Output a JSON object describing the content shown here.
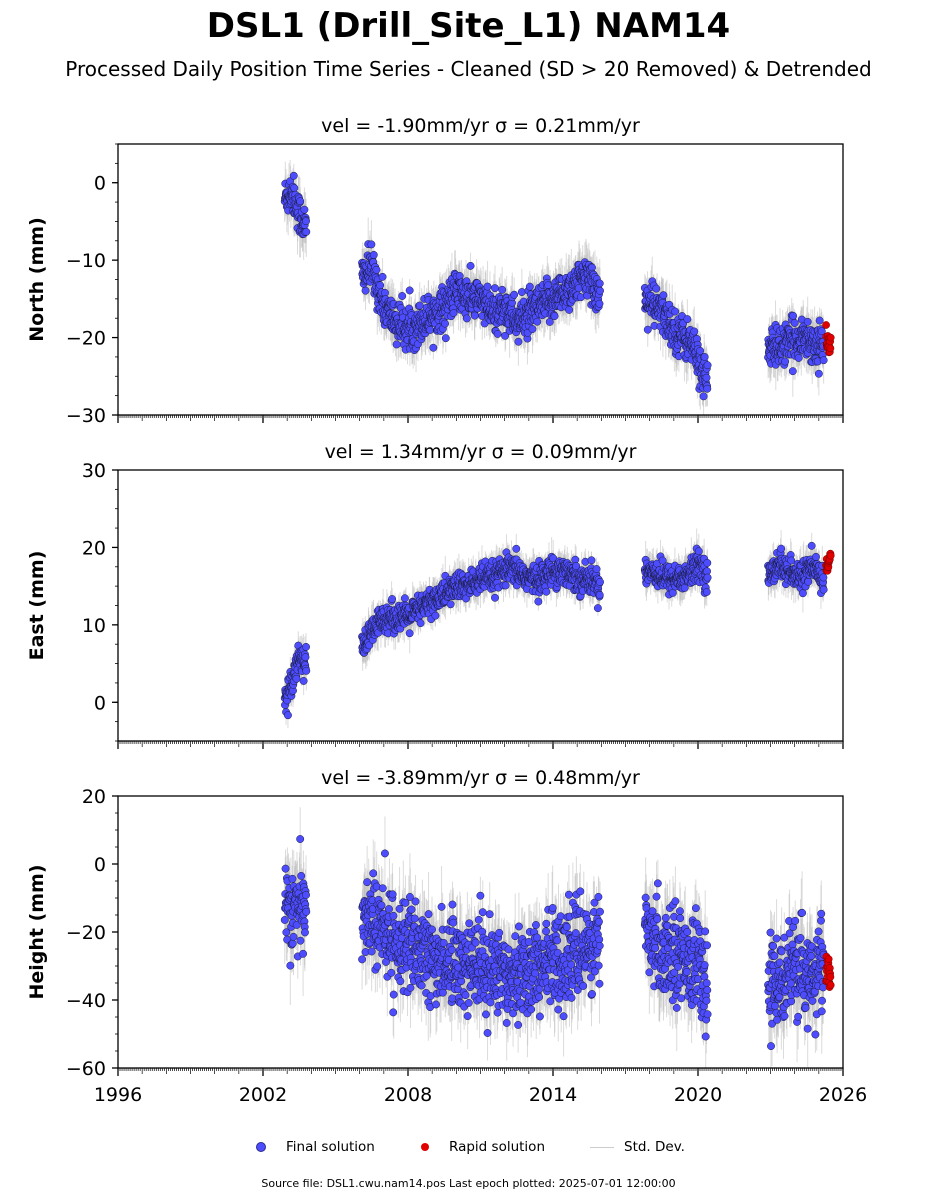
{
  "title": "DSL1 (Drill_Site_L1) NAM14",
  "subtitle": "Processed Daily Position Time Series - Cleaned (SD > 20 Removed) & Detrended",
  "footer": "Source file: DSL1.cwu.nam14.pos  Last epoch plotted: 2025-07-01 12:00:00",
  "legend": {
    "final_label": "Final solution",
    "rapid_label": "Rapid solution",
    "std_label": "Std. Dev."
  },
  "colors": {
    "final": "#4d4dff",
    "final_edge": "#1a1a3a",
    "rapid": "#e00000",
    "std": "#bdbdbd"
  },
  "chart_data": [
    {
      "type": "scatter",
      "title": "vel = -1.90mm/yr   σ = 0.21mm/yr",
      "ylabel": "North (mm)",
      "xlim": [
        1996,
        2026
      ],
      "ylim": [
        -30,
        5
      ],
      "yticks": [
        0,
        -10,
        -20,
        -30
      ],
      "yticklabels": [
        "0",
        "−10",
        "−20",
        "−30"
      ],
      "noise": 1.3,
      "err": 2.4,
      "series": [
        {
          "name": "Final solution",
          "segments": [
            {
              "x": [
                2002.9,
                2003.2,
                2003.5,
                2003.8
              ],
              "y": [
                -2,
                -1,
                -4,
                -6
              ]
            },
            {
              "x": [
                2006.1,
                2006.5,
                2007.0,
                2007.5,
                2008.0,
                2008.5,
                2009.0,
                2009.5,
                2010.0,
                2010.5,
                2011.0,
                2011.5,
                2012.0,
                2012.5,
                2013.0,
                2013.5,
                2014.0,
                2014.5,
                2015.0,
                2015.5,
                2015.95
              ],
              "y": [
                -12,
                -11,
                -16,
                -18,
                -19,
                -18,
                -17,
                -16,
                -14,
                -15,
                -15,
                -17,
                -16,
                -18,
                -17,
                -16,
                -15,
                -14,
                -13,
                -12,
                -15
              ]
            },
            {
              "x": [
                2017.8,
                2018.2,
                2018.6,
                2019.0,
                2019.4,
                2019.8,
                2020.1,
                2020.4
              ],
              "y": [
                -15,
                -16,
                -17,
                -19,
                -20,
                -21,
                -24,
                -25
              ]
            },
            {
              "x": [
                2022.9,
                2023.3,
                2023.7,
                2024.1,
                2024.5,
                2024.9,
                2025.2
              ],
              "y": [
                -22,
                -21,
                -21,
                -20,
                -20,
                -21,
                -21
              ]
            }
          ]
        },
        {
          "name": "Rapid solution",
          "segments": [
            {
              "x": [
                2025.3,
                2025.5
              ],
              "y": [
                -20,
                -21
              ]
            }
          ]
        }
      ]
    },
    {
      "type": "scatter",
      "title": "vel = 1.34mm/yr   σ = 0.09mm/yr",
      "ylabel": "East (mm)",
      "xlim": [
        1996,
        2026
      ],
      "ylim": [
        -5,
        30
      ],
      "yticks": [
        30,
        20,
        10,
        0
      ],
      "yticklabels": [
        "30",
        "20",
        "10",
        "0"
      ],
      "noise": 0.9,
      "err": 1.8,
      "series": [
        {
          "name": "Final solution",
          "segments": [
            {
              "x": [
                2002.9,
                2003.2,
                2003.5,
                2003.8
              ],
              "y": [
                0,
                3,
                6,
                5
              ]
            },
            {
              "x": [
                2006.1,
                2006.5,
                2007.0,
                2007.5,
                2008.0,
                2008.5,
                2009.0,
                2009.5,
                2010.0,
                2010.5,
                2011.0,
                2011.5,
                2012.0,
                2012.5,
                2013.0,
                2013.5,
                2014.0,
                2014.5,
                2015.0,
                2015.5,
                2015.95
              ],
              "y": [
                7,
                9,
                11,
                11,
                11,
                12,
                13,
                14,
                15,
                15,
                16,
                16,
                17,
                17,
                16,
                16,
                17,
                17,
                16,
                16,
                15
              ]
            },
            {
              "x": [
                2017.8,
                2018.2,
                2018.6,
                2019.0,
                2019.4,
                2019.8,
                2020.1,
                2020.4
              ],
              "y": [
                17,
                17,
                16,
                16,
                16,
                17,
                18,
                16
              ]
            },
            {
              "x": [
                2022.9,
                2023.3,
                2023.7,
                2024.1,
                2024.5,
                2024.9,
                2025.2
              ],
              "y": [
                16,
                18,
                17,
                16,
                17,
                17,
                16
              ]
            }
          ]
        },
        {
          "name": "Rapid solution",
          "segments": [
            {
              "x": [
                2025.3,
                2025.5
              ],
              "y": [
                17,
                19
              ]
            }
          ]
        }
      ]
    },
    {
      "type": "scatter",
      "title": "vel = -3.89mm/yr   σ = 0.48mm/yr",
      "ylabel": "Height (mm)",
      "xlim": [
        1996,
        2026
      ],
      "ylim": [
        -60,
        20
      ],
      "yticks": [
        20,
        0,
        -20,
        -40,
        -60
      ],
      "yticklabels": [
        "20",
        "0",
        "−20",
        "−40",
        "−60"
      ],
      "noise": 6.5,
      "err": 9,
      "series": [
        {
          "name": "Final solution",
          "segments": [
            {
              "x": [
                2002.9,
                2003.2,
                2003.5,
                2003.8
              ],
              "y": [
                -10,
                -12,
                -14,
                -15
              ]
            },
            {
              "x": [
                2006.1,
                2006.5,
                2007.0,
                2007.5,
                2008.0,
                2008.5,
                2009.0,
                2009.5,
                2010.0,
                2010.5,
                2011.0,
                2011.5,
                2012.0,
                2012.5,
                2013.0,
                2013.5,
                2014.0,
                2014.5,
                2015.0,
                2015.5,
                2015.95
              ],
              "y": [
                -15,
                -16,
                -20,
                -22,
                -25,
                -27,
                -28,
                -28,
                -29,
                -29,
                -30,
                -31,
                -31,
                -32,
                -31,
                -30,
                -28,
                -27,
                -26,
                -24,
                -22
              ]
            },
            {
              "x": [
                2017.8,
                2018.2,
                2018.6,
                2019.0,
                2019.4,
                2019.8,
                2020.1,
                2020.4
              ],
              "y": [
                -22,
                -24,
                -25,
                -26,
                -26,
                -28,
                -33,
                -38
              ]
            },
            {
              "x": [
                2022.9,
                2023.3,
                2023.7,
                2024.1,
                2024.5,
                2024.9,
                2025.2
              ],
              "y": [
                -36,
                -34,
                -32,
                -32,
                -33,
                -31,
                -30
              ]
            }
          ]
        },
        {
          "name": "Rapid solution",
          "segments": [
            {
              "x": [
                2025.3,
                2025.5
              ],
              "y": [
                -30,
                -33
              ]
            }
          ]
        }
      ]
    }
  ],
  "xaxis": {
    "major_ticks": [
      1996,
      2002,
      2008,
      2014,
      2020,
      2026
    ],
    "labels": [
      "1996",
      "2002",
      "2008",
      "2014",
      "2020",
      "2026"
    ]
  }
}
